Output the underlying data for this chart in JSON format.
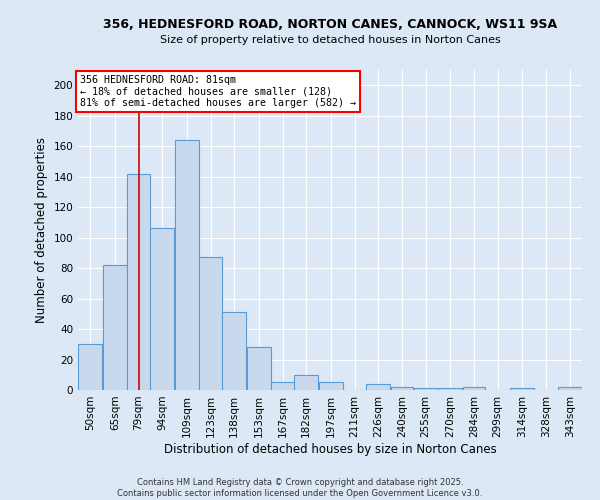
{
  "title": "356, HEDNESFORD ROAD, NORTON CANES, CANNOCK, WS11 9SA",
  "subtitle": "Size of property relative to detached houses in Norton Canes",
  "xlabel": "Distribution of detached houses by size in Norton Canes",
  "ylabel": "Number of detached properties",
  "bar_color": "#c8d9ee",
  "bar_edge_color": "#5b9bd5",
  "background_color": "#dce8f5",
  "grid_color": "#ffffff",
  "annotation_text": "356 HEDNESFORD ROAD: 81sqm\n← 18% of detached houses are smaller (128)\n81% of semi-detached houses are larger (582) →",
  "vline_x": 81,
  "vline_color": "#cc0000",
  "categories": [
    "50sqm",
    "65sqm",
    "79sqm",
    "94sqm",
    "109sqm",
    "123sqm",
    "138sqm",
    "153sqm",
    "167sqm",
    "182sqm",
    "197sqm",
    "211sqm",
    "226sqm",
    "240sqm",
    "255sqm",
    "270sqm",
    "284sqm",
    "299sqm",
    "314sqm",
    "328sqm",
    "343sqm"
  ],
  "bin_edges": [
    42.5,
    57.5,
    72.5,
    86.5,
    101.5,
    116.5,
    130.5,
    145.5,
    160.5,
    174.5,
    189.5,
    204.5,
    218.5,
    233.5,
    247.5,
    262.5,
    277.5,
    291.5,
    306.5,
    321.5,
    335.5,
    350.5
  ],
  "values": [
    30,
    82,
    142,
    106,
    164,
    87,
    51,
    28,
    5,
    10,
    5,
    0,
    4,
    2,
    1,
    1,
    2,
    0,
    1,
    0,
    2
  ],
  "ylim": [
    0,
    210
  ],
  "yticks": [
    0,
    20,
    40,
    60,
    80,
    100,
    120,
    140,
    160,
    180,
    200
  ],
  "footer_line1": "Contains HM Land Registry data © Crown copyright and database right 2025.",
  "footer_line2": "Contains public sector information licensed under the Open Government Licence v3.0."
}
